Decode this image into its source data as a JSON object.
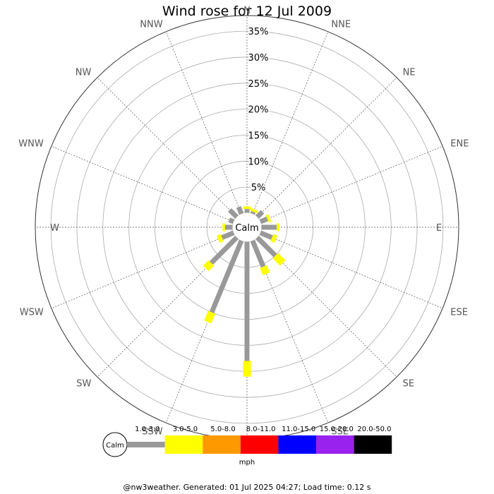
{
  "title": "Wind rose for 12 Jul 2009",
  "footer": "@nw3weather. Generated: 01 Jul 2025 04:27; Load time: 0.12 s",
  "chart_data": {
    "type": "wind-rose",
    "title": "Wind rose for 12 Jul 2009",
    "radial_unit": "%",
    "radial_ticks": [
      5,
      10,
      15,
      20,
      25,
      30,
      35
    ],
    "radial_tick_labels": [
      "5%",
      "10%",
      "15%",
      "20%",
      "25%",
      "30%",
      "35%"
    ],
    "rmax": 38,
    "grid": true,
    "center_label": "Calm",
    "directions": [
      "N",
      "NNE",
      "NE",
      "ENE",
      "E",
      "ESE",
      "SE",
      "SSE",
      "S",
      "SSW",
      "SW",
      "WSW",
      "W",
      "WNW",
      "NW",
      "NNW"
    ],
    "speed_bins": [
      "1.0-3.0",
      "3.0-5.0",
      "5.0-8.0",
      "8.0-11.0",
      "11.0-15.0",
      "15.0-20.0",
      "20.0-50.0"
    ],
    "speed_unit": "mph",
    "bin_colors": [
      "#999999",
      "#ffff00",
      "#ff9900",
      "#ff0000",
      "#0000ff",
      "#9922ee",
      "#000000"
    ],
    "segments": [
      {
        "direction": "N",
        "bins": [
          0.8,
          0.5
        ]
      },
      {
        "direction": "NNE",
        "bins": [
          0.5,
          0.5
        ]
      },
      {
        "direction": "NE",
        "bins": [
          1.5
        ]
      },
      {
        "direction": "ENE",
        "bins": [
          1.5,
          0.5
        ]
      },
      {
        "direction": "E",
        "bins": [
          3.0,
          0.5
        ]
      },
      {
        "direction": "ESE",
        "bins": [
          2.5,
          0.8
        ]
      },
      {
        "direction": "SE",
        "bins": [
          5.0,
          2.0
        ]
      },
      {
        "direction": "SSE",
        "bins": [
          5.5,
          1.5
        ]
      },
      {
        "direction": "S",
        "bins": [
          23.0,
          3.0
        ]
      },
      {
        "direction": "SSW",
        "bins": [
          15.0,
          2.0
        ]
      },
      {
        "direction": "SW",
        "bins": [
          7.0,
          1.5
        ]
      },
      {
        "direction": "WSW",
        "bins": [
          2.5,
          0.8
        ]
      },
      {
        "direction": "W",
        "bins": [
          1.5,
          0.5
        ]
      },
      {
        "direction": "WNW",
        "bins": [
          1.0
        ]
      },
      {
        "direction": "NW",
        "bins": [
          2.0
        ]
      },
      {
        "direction": "NNW",
        "bins": [
          1.5
        ]
      }
    ]
  }
}
